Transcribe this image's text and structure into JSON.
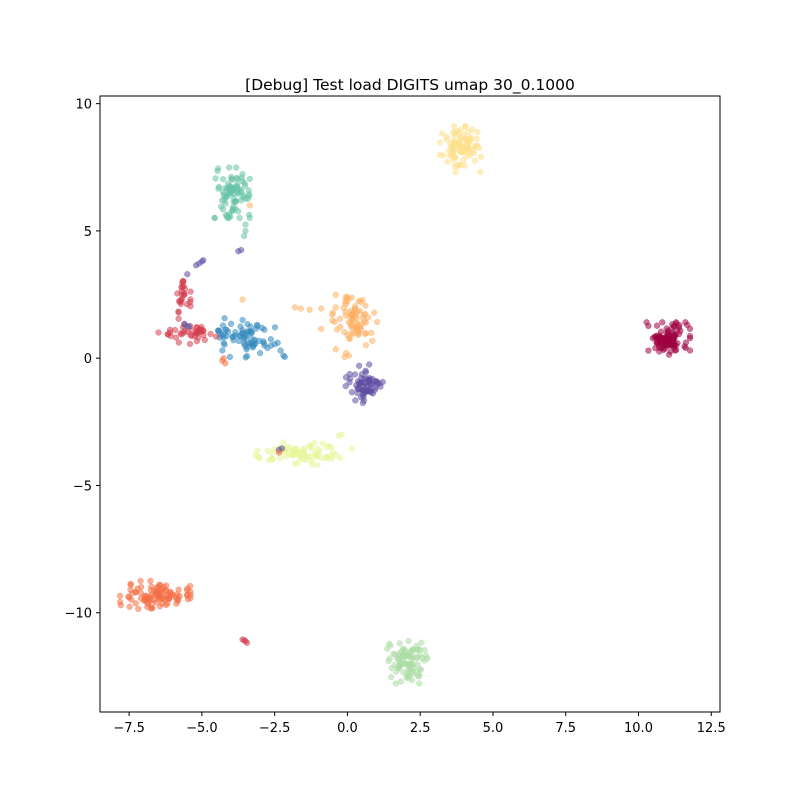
{
  "chart_data": {
    "type": "scatter",
    "title": "[Debug] Test load DIGITS umap 30_0.1000",
    "xlabel": "",
    "ylabel": "",
    "xlim": [
      -8.5,
      12.8
    ],
    "ylim": [
      -13.9,
      10.3
    ],
    "x_ticks": [
      -7.5,
      -5.0,
      -2.5,
      0.0,
      2.5,
      5.0,
      7.5,
      10.0,
      12.5
    ],
    "x_tick_labels": [
      "−7.5",
      "−5.0",
      "−2.5",
      "0.0",
      "2.5",
      "5.0",
      "7.5",
      "10.0",
      "12.5"
    ],
    "y_ticks": [
      10,
      5,
      0,
      -5,
      -10
    ],
    "y_tick_labels": [
      "10",
      "5",
      "0",
      "−5",
      "−10"
    ],
    "grid": false,
    "legend": "none",
    "marker_opacity": 0.55,
    "clusters": [
      {
        "color": "#9e0142",
        "center": [
          11.0,
          0.75
        ],
        "spread": [
          0.35,
          0.3
        ],
        "n": 110
      },
      {
        "color": "#fee08b",
        "center": [
          3.95,
          8.3
        ],
        "spread": [
          0.35,
          0.45
        ],
        "n": 90
      },
      {
        "color": "#66c2a5",
        "center": [
          -3.9,
          6.5
        ],
        "spread": [
          0.3,
          0.45
        ],
        "n": 85
      },
      {
        "color": "#fdae61",
        "center": [
          0.25,
          1.5
        ],
        "spread": [
          0.35,
          0.45
        ],
        "n": 75
      },
      {
        "color": "#5e4fa2",
        "center": [
          0.6,
          -1.1
        ],
        "spread": [
          0.3,
          0.3
        ],
        "n": 65
      },
      {
        "color": "#3288bd",
        "center": [
          -3.5,
          0.8
        ],
        "spread": [
          0.55,
          0.35
        ],
        "n": 70
      },
      {
        "color": "#d53e4f",
        "center": [
          -5.5,
          1.0
        ],
        "spread": [
          0.45,
          0.2
        ],
        "n": 40
      },
      {
        "color": "#d53e4f",
        "center": [
          -5.65,
          2.6
        ],
        "spread": [
          0.12,
          0.35
        ],
        "n": 25
      },
      {
        "color": "#e6f598",
        "center": [
          -1.5,
          -3.75
        ],
        "spread": [
          0.75,
          0.2
        ],
        "n": 75
      },
      {
        "color": "#f46d43",
        "center": [
          -6.6,
          -9.3
        ],
        "spread": [
          0.55,
          0.25
        ],
        "n": 95
      },
      {
        "color": "#abdda4",
        "center": [
          2.0,
          -11.9
        ],
        "spread": [
          0.3,
          0.4
        ],
        "n": 90
      }
    ],
    "points": [
      {
        "color": "#d53e4f",
        "x": -3.6,
        "y": -11.05
      },
      {
        "color": "#d53e4f",
        "x": -3.5,
        "y": -11.12
      },
      {
        "color": "#d53e4f",
        "x": -3.45,
        "y": -11.18
      },
      {
        "color": "#d53e4f",
        "x": -3.55,
        "y": -11.08
      },
      {
        "color": "#5e4fa2",
        "x": -5.2,
        "y": 3.65
      },
      {
        "color": "#5e4fa2",
        "x": -5.1,
        "y": 3.72
      },
      {
        "color": "#5e4fa2",
        "x": -5.0,
        "y": 3.8
      },
      {
        "color": "#5e4fa2",
        "x": -4.95,
        "y": 3.85
      },
      {
        "color": "#5e4fa2",
        "x": -3.75,
        "y": 4.2
      },
      {
        "color": "#5e4fa2",
        "x": -3.65,
        "y": 4.25
      },
      {
        "color": "#5e4fa2",
        "x": -5.5,
        "y": 3.3
      },
      {
        "color": "#66c2a5",
        "x": -3.55,
        "y": 4.8
      },
      {
        "color": "#66c2a5",
        "x": -3.5,
        "y": 5.0
      },
      {
        "color": "#66c2a5",
        "x": -3.5,
        "y": 5.25
      },
      {
        "color": "#fdae61",
        "x": -3.35,
        "y": 6.0
      },
      {
        "color": "#fdae61",
        "x": -1.8,
        "y": 2.0
      },
      {
        "color": "#fdae61",
        "x": -1.6,
        "y": 1.95
      },
      {
        "color": "#fdae61",
        "x": -1.3,
        "y": 1.9
      },
      {
        "color": "#fdae61",
        "x": -0.9,
        "y": 1.95
      },
      {
        "color": "#fdae61",
        "x": -0.9,
        "y": 1.15
      },
      {
        "color": "#fdae61",
        "x": -0.5,
        "y": 1.8
      },
      {
        "color": "#fdae61",
        "x": -0.4,
        "y": 2.0
      },
      {
        "color": "#fdae61",
        "x": -0.05,
        "y": 0.2
      },
      {
        "color": "#fdae61",
        "x": 0.05,
        "y": 0.1
      },
      {
        "color": "#fdae61",
        "x": -0.1,
        "y": 0.05
      },
      {
        "color": "#fdae61",
        "x": -0.4,
        "y": 0.35
      },
      {
        "color": "#fdae61",
        "x": -3.6,
        "y": 2.3
      },
      {
        "color": "#5e4fa2",
        "x": 0.1,
        "y": -0.8
      },
      {
        "color": "#5e4fa2",
        "x": -0.05,
        "y": -0.75
      },
      {
        "color": "#5e4fa2",
        "x": 0.75,
        "y": -0.25
      },
      {
        "color": "#5e4fa2",
        "x": 0.4,
        "y": -0.3
      },
      {
        "color": "#3288bd",
        "x": -2.5,
        "y": 0.55
      },
      {
        "color": "#3288bd",
        "x": -2.3,
        "y": 0.3
      },
      {
        "color": "#3288bd",
        "x": -2.2,
        "y": 0.1
      },
      {
        "color": "#3288bd",
        "x": -2.15,
        "y": 0.05
      },
      {
        "color": "#3288bd",
        "x": -2.75,
        "y": 0.4
      },
      {
        "color": "#3288bd",
        "x": -5.5,
        "y": 1.25
      },
      {
        "color": "#3288bd",
        "x": -4.3,
        "y": 0.3
      },
      {
        "color": "#3288bd",
        "x": -3.0,
        "y": 0.2
      },
      {
        "color": "#3288bd",
        "x": -3.6,
        "y": 1.5
      },
      {
        "color": "#f46d43",
        "x": -4.3,
        "y": -0.1
      },
      {
        "color": "#f46d43",
        "x": -4.2,
        "y": -0.2
      },
      {
        "color": "#f46d43",
        "x": -4.25,
        "y": 0.0
      },
      {
        "color": "#5e4fa2",
        "x": -5.6,
        "y": 1.35
      },
      {
        "color": "#5e4fa2",
        "x": -5.45,
        "y": 1.25
      },
      {
        "color": "#5e4fa2",
        "x": -2.35,
        "y": -3.6
      },
      {
        "color": "#5e4fa2",
        "x": -2.25,
        "y": -3.55
      },
      {
        "color": "#f46d43",
        "x": -2.35,
        "y": -3.7
      },
      {
        "color": "#d53e4f",
        "x": -5.4,
        "y": 2.2
      },
      {
        "color": "#d53e4f",
        "x": -5.8,
        "y": 1.8
      },
      {
        "color": "#d53e4f",
        "x": -5.8,
        "y": 1.55
      },
      {
        "color": "#d53e4f",
        "x": -6.1,
        "y": 1.0
      },
      {
        "color": "#d53e4f",
        "x": -4.7,
        "y": 0.95
      },
      {
        "color": "#e6f598",
        "x": -0.3,
        "y": -3.05
      },
      {
        "color": "#e6f598",
        "x": -0.2,
        "y": -3.0
      },
      {
        "color": "#e6f598",
        "x": -2.7,
        "y": -4.0
      },
      {
        "color": "#e6f598",
        "x": -2.6,
        "y": -3.95
      },
      {
        "color": "#f46d43",
        "x": -5.4,
        "y": -8.95
      },
      {
        "color": "#f46d43",
        "x": -5.5,
        "y": -9.05
      },
      {
        "color": "#f46d43",
        "x": -7.5,
        "y": -9.4
      },
      {
        "color": "#abdda4",
        "x": 2.7,
        "y": -11.7
      },
      {
        "color": "#abdda4",
        "x": 2.75,
        "y": -11.8
      }
    ]
  }
}
